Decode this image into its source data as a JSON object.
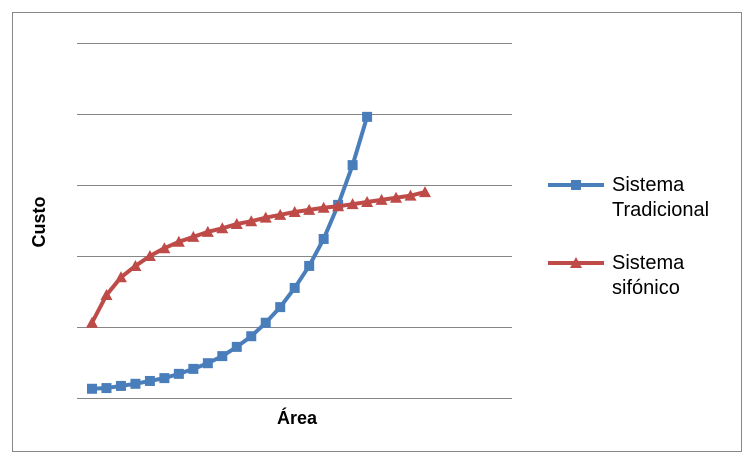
{
  "chart_data": {
    "type": "line",
    "x_label": "Área",
    "y_label": "Custo",
    "categories": [
      null,
      null,
      null,
      null,
      null,
      null,
      null,
      null,
      null,
      null,
      null,
      null,
      null,
      null,
      null,
      null,
      null,
      null,
      null,
      null,
      null,
      null,
      null,
      null
    ],
    "series": [
      {
        "name": "Sistema Tradicional",
        "color": "#4a7ebb",
        "marker": "square",
        "values": [
          0.13,
          0.14,
          0.17,
          0.2,
          0.24,
          0.28,
          0.34,
          0.41,
          0.49,
          0.59,
          0.72,
          0.87,
          1.06,
          1.28,
          1.55,
          1.86,
          2.24,
          2.72,
          3.28,
          3.96,
          null,
          null,
          null,
          null
        ]
      },
      {
        "name": "Sistema sifónico",
        "color": "#be4b48",
        "marker": "triangle",
        "values": [
          1.06,
          1.45,
          1.7,
          1.86,
          2.0,
          2.11,
          2.2,
          2.27,
          2.34,
          2.39,
          2.45,
          2.49,
          2.54,
          2.58,
          2.62,
          2.65,
          2.68,
          2.7,
          2.73,
          2.76,
          2.79,
          2.82,
          2.85,
          2.9
        ]
      }
    ],
    "ylim": [
      0,
      5
    ],
    "ygrid": [
      0,
      1,
      2,
      3,
      4,
      5
    ],
    "legend": "right"
  }
}
